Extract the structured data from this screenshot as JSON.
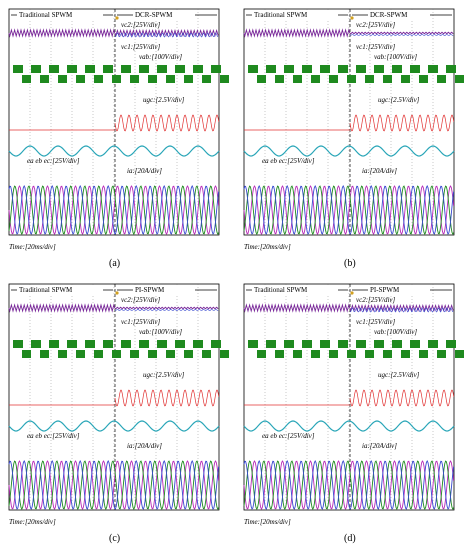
{
  "panels": [
    {
      "caption": "(a)",
      "left_method": "Traditional SPWM",
      "right_method": "DCR-SPWM",
      "labels": {
        "vc2": "v",
        "vc1": "v",
        "vab": "v",
        "ugc": "u",
        "ea": "e",
        "ia": "i"
      },
      "text": [
        "vc2:[25V/div]",
        "vc1:[25V/div]",
        "vab:[100V/div]",
        "ugc:[2.5V/div]",
        "ea eb ec:[25V/div]",
        "ia:[20A/div]"
      ],
      "time": "Time:[20ms/div]"
    },
    {
      "caption": "(b)",
      "left_method": "Traditional SPWM",
      "right_method": "DCR-SPWM",
      "text": [
        "vc2:[25V/div]",
        "vc1:[25V/div]",
        "vab:[100V/div]",
        "ugc:[2.5V/div]",
        "ea eb ec:[25V/div]",
        "ia:[20A/div]"
      ],
      "time": "Time:[20ms/div]"
    },
    {
      "caption": "(c)",
      "left_method": "Traditional SPWM",
      "right_method": "PI-SPWM",
      "text": [
        "vc2:[25V/div]",
        "vc1:[25V/div]",
        "vab:[100V/div]",
        "ugc:[2.5V/div]",
        "ea eb ec:[25V/div]",
        "ia:[20A/div]"
      ],
      "time": "Time:[20ms/div]"
    },
    {
      "caption": "(d)",
      "left_method": "Traditional SPWM",
      "right_method": "PI-SPWM",
      "text": [
        "vc2:[25V/div]",
        "vc1:[25V/div]",
        "vab:[100V/div]",
        "ugc:[2.5V/div]",
        "ea eb ec:[25V/div]",
        "ia:[20A/div]"
      ],
      "time": "Time:[20ms/div]"
    }
  ],
  "label_text": {
    "vc2": "vc2:[25V/div]",
    "vc1": "vc1:[25V/div]",
    "vab": "vab:[100V/div]",
    "ugc": "ugc:[2.5V/div]",
    "e": "ea eb ec:[25V/div]",
    "i": "ia:[20A/div]",
    "time": "Time:[20ms/div]"
  },
  "colors": {
    "purple": "#7a2a9a",
    "green": "#1f8a1f",
    "red": "#e03030",
    "cyan": "#2aa6b8",
    "blue": "#3a4ad0",
    "magenta": "#b82ab8",
    "grid": "#777777",
    "marker": "#d2a020"
  }
}
